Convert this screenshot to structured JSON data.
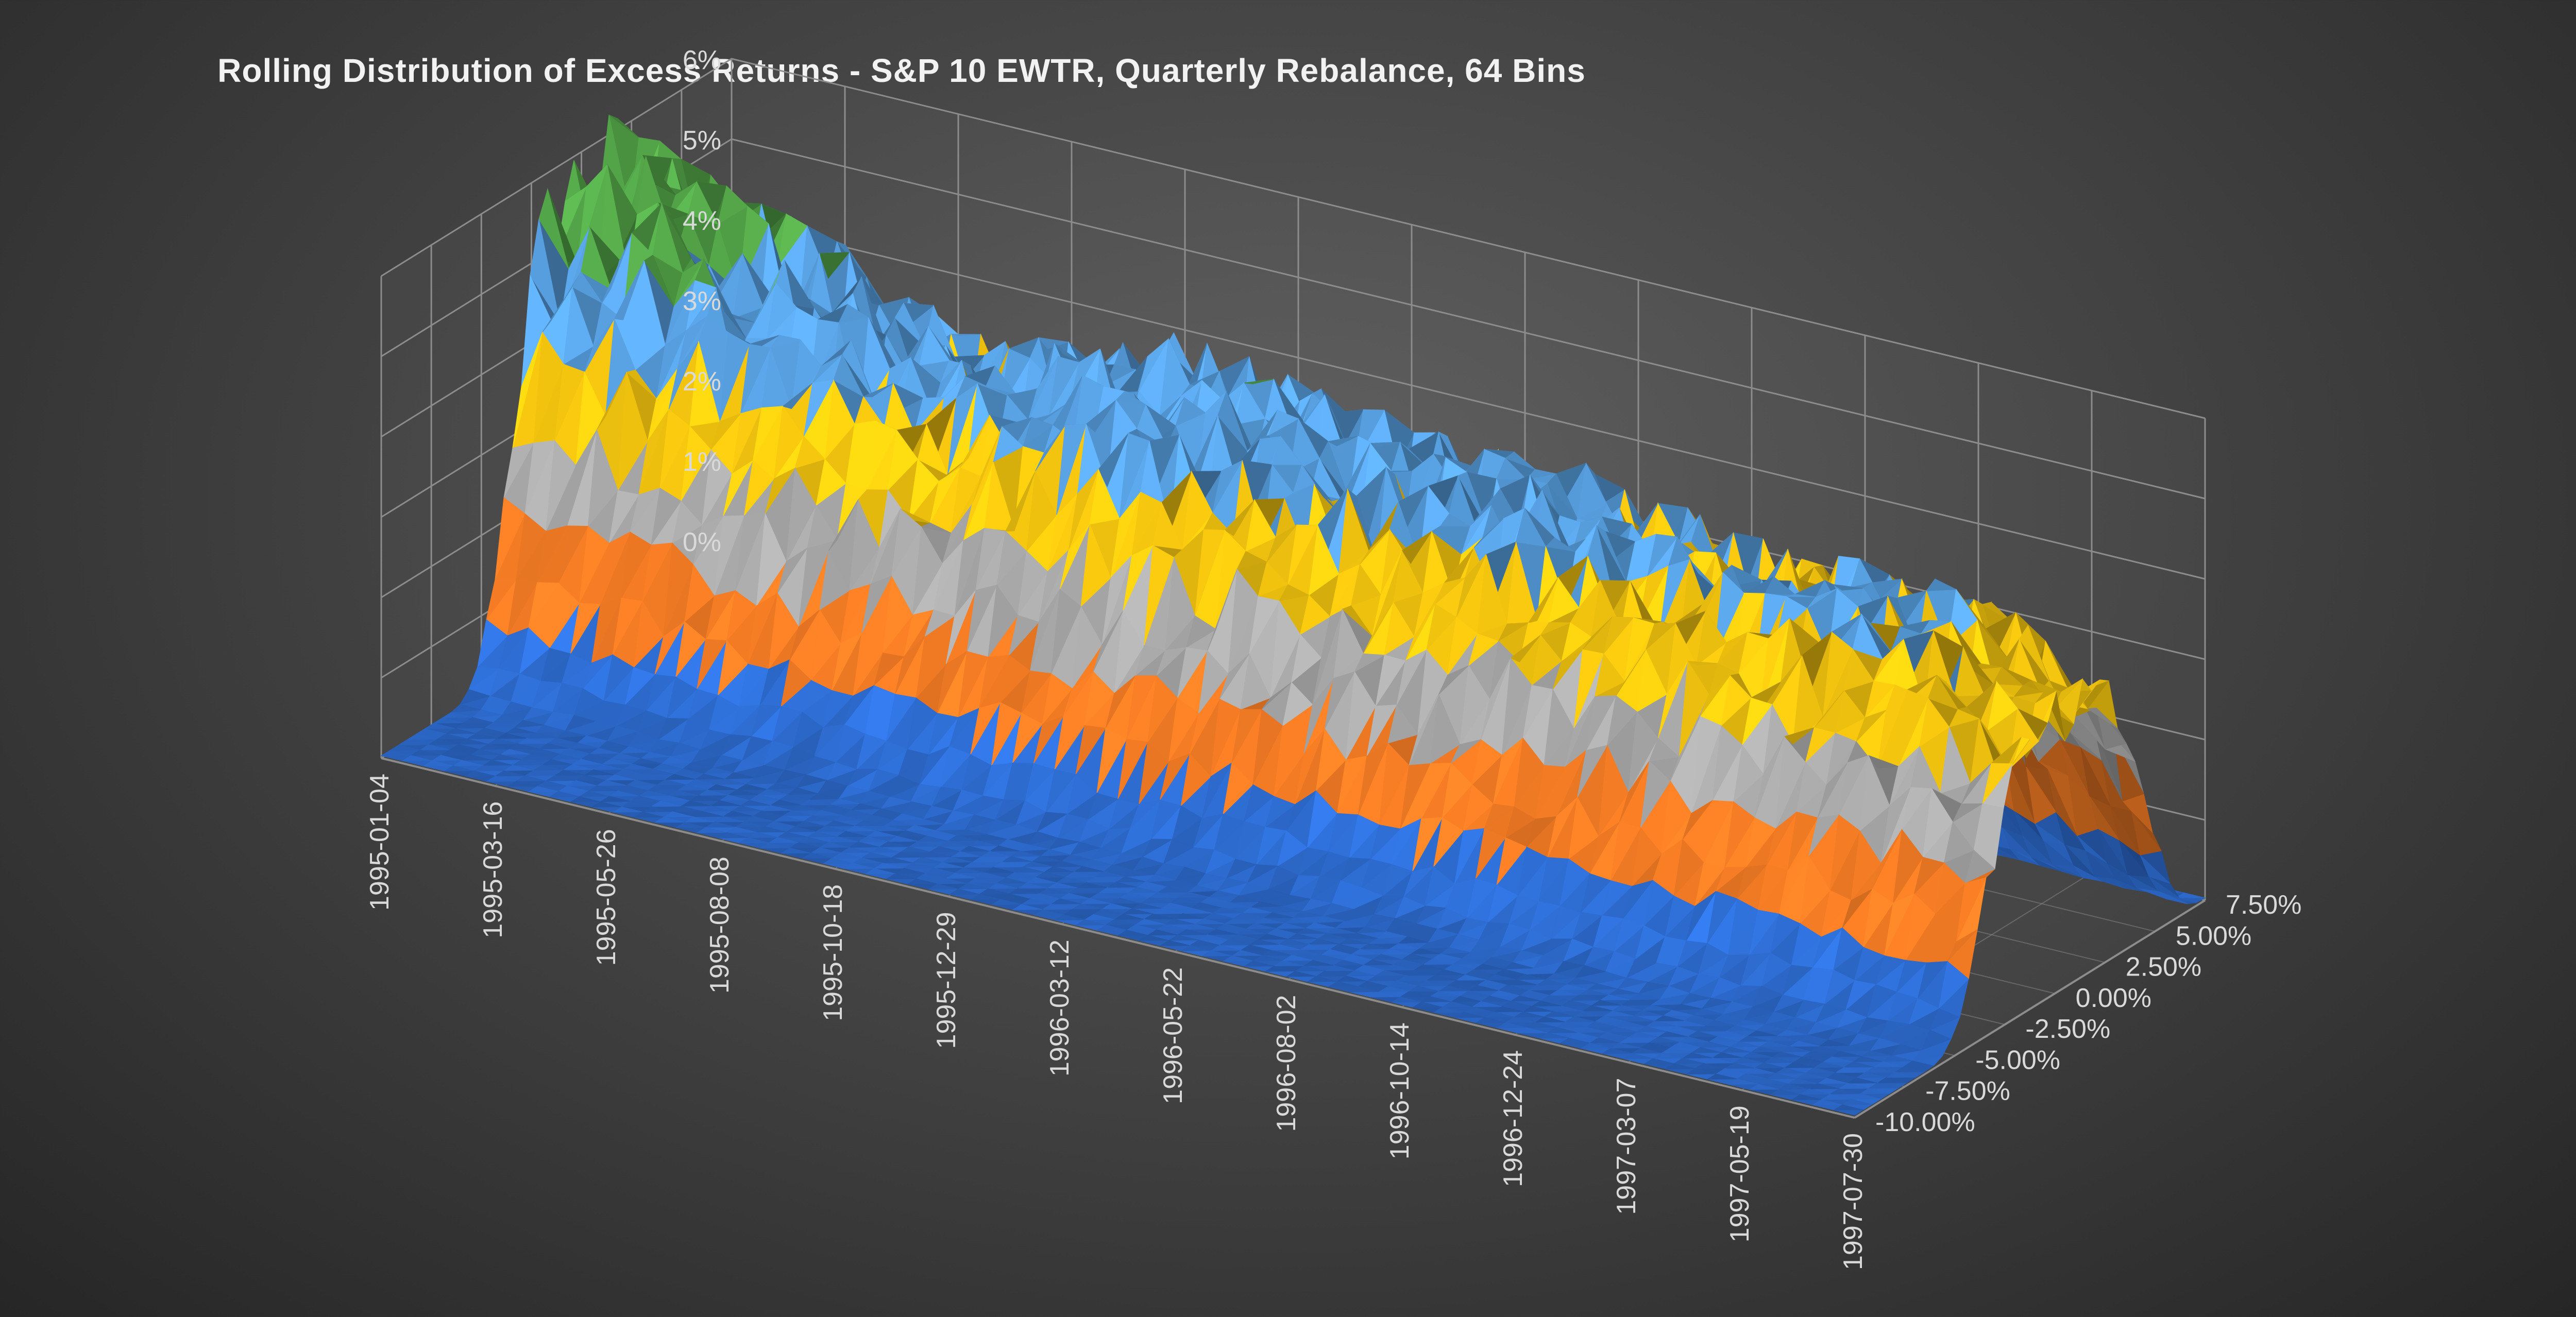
{
  "chart_data": {
    "type": "surface",
    "title": "Rolling Distribution of Excess Returns - S&P 10 EWTR, Quarterly Rebalance, 64 Bins",
    "z_axis": {
      "label": "",
      "ticks": [
        "0%",
        "1%",
        "2%",
        "3%",
        "4%",
        "5%",
        "6%"
      ],
      "range": [
        0,
        6
      ]
    },
    "x_axis": {
      "label": "",
      "ticks": [
        "1995-01-04",
        "1995-03-16",
        "1995-05-26",
        "1995-08-08",
        "1995-10-18",
        "1995-12-29",
        "1996-03-12",
        "1996-05-22",
        "1996-08-02",
        "1996-10-14",
        "1996-12-24",
        "1997-03-07",
        "1997-05-19",
        "1997-07-30"
      ]
    },
    "y_axis": {
      "label": "",
      "ticks": [
        "-10.00%",
        "-7.50%",
        "-5.00%",
        "-2.50%",
        "0.00%",
        "2.50%",
        "5.00%",
        "7.50%"
      ],
      "range": [
        -10,
        7.5
      ]
    },
    "color_bands": [
      {
        "range": [
          0,
          1
        ],
        "color": "#2f6fd6"
      },
      {
        "range": [
          1,
          2
        ],
        "color": "#f07a24"
      },
      {
        "range": [
          2,
          3
        ],
        "color": "#a6a6a6"
      },
      {
        "range": [
          3,
          4
        ],
        "color": "#f2c40f"
      },
      {
        "range": [
          4,
          5
        ],
        "color": "#5aa4e6"
      },
      {
        "range": [
          5,
          6
        ],
        "color": "#55a84a"
      }
    ],
    "ridge_peak_percent": [
      5.6,
      5.2,
      4.4,
      4.1,
      4.7,
      4.5,
      4.2,
      4.3,
      4.0,
      3.9,
      4.0,
      3.3
    ],
    "grid": true
  },
  "colors": {
    "background": "#3f3f3f",
    "gridline": "#8c8c8c",
    "text": "#d9d9d9"
  }
}
